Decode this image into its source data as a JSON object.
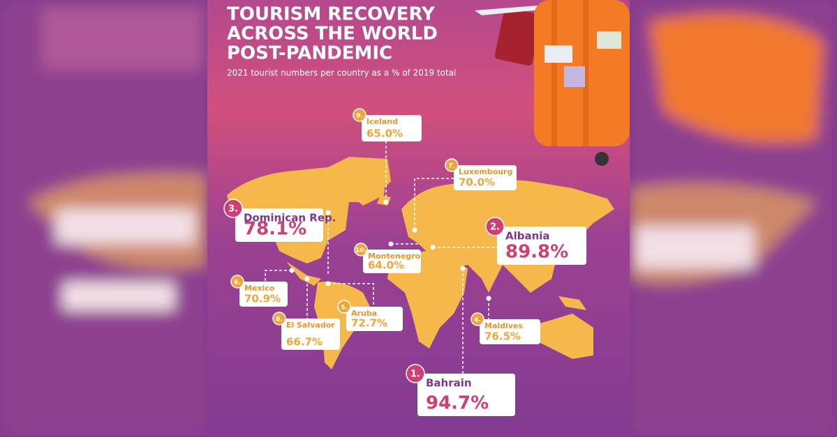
{
  "header": {
    "title": [
      "TOURISM RECOVERY",
      "ACROSS THE WORLD",
      "POST-PANDEMIC"
    ],
    "subtitle": "2021 tourist numbers per country as a % of 2019 total"
  },
  "items": [
    {
      "rank": "1.",
      "country": "Bahrain",
      "value": "94.7%"
    },
    {
      "rank": "2.",
      "country": "Albania",
      "value": "89.8%"
    },
    {
      "rank": "3.",
      "country": "Dominican Rep.",
      "value": "78.1%"
    },
    {
      "rank": "4.",
      "country": "Maldives",
      "value": "76.5%"
    },
    {
      "rank": "5.",
      "country": "Aruba",
      "value": "72.7%"
    },
    {
      "rank": "6.",
      "country": "Mexico",
      "value": "70.9%"
    },
    {
      "rank": "7.",
      "country": "Luxembourg",
      "value": "70.0%"
    },
    {
      "rank": "8.",
      "country": "El Salvador",
      "value": "66.7%"
    },
    {
      "rank": "9.",
      "country": "Iceland",
      "value": "65.0%"
    },
    {
      "rank": "10.",
      "country": "Montenegro",
      "value": "64.0%"
    }
  ]
}
